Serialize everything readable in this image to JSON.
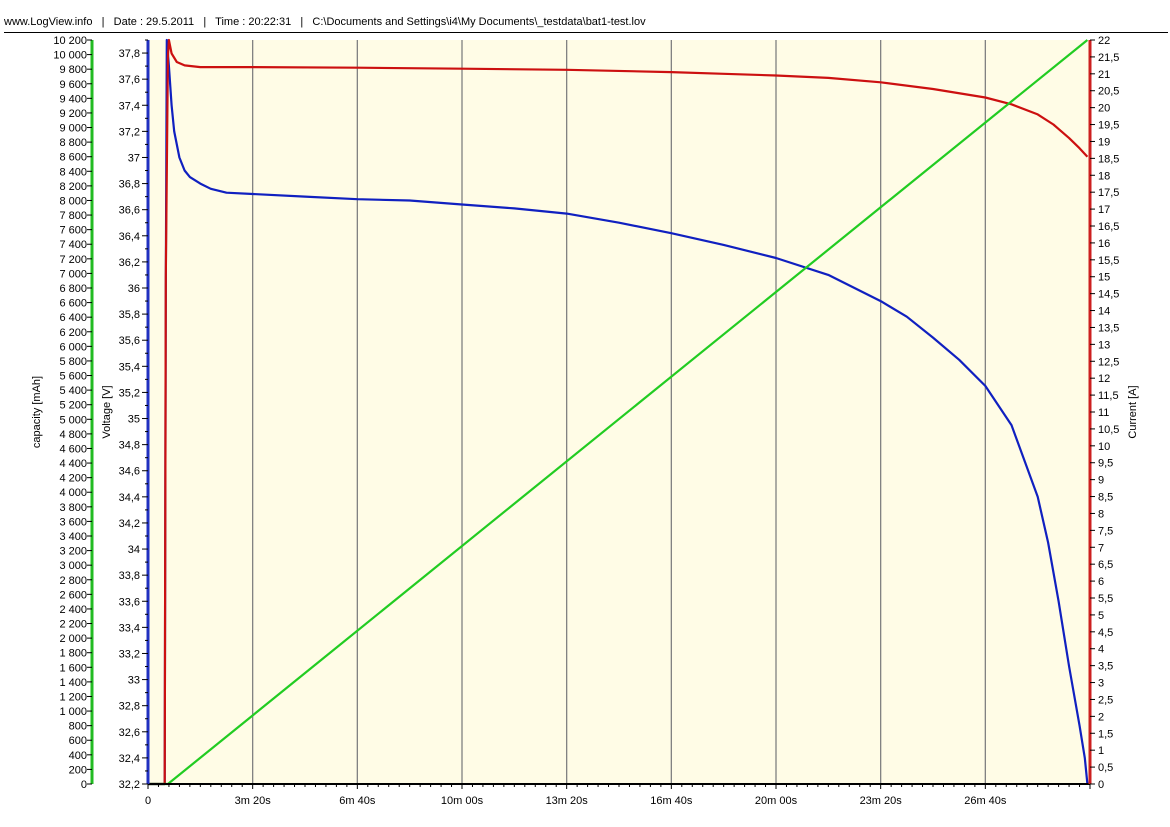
{
  "header": {
    "text": "www.LogView.info   |   Date : 29.5.2011   |   Time : 20:22:31   |   C:\\Documents and Settings\\i4\\My Documents\\_testdata\\bat1-test.lov"
  },
  "chart_data": {
    "type": "line",
    "background": "#fffce6",
    "grid_color": "#808080",
    "x_axis": {
      "unit": "s",
      "min": 0,
      "max": 1800,
      "ticks": [
        0,
        200,
        400,
        600,
        800,
        1000,
        1200,
        1400,
        1600
      ],
      "tick_labels": [
        "0",
        "3m 20s",
        "6m 40s",
        "10m 00s",
        "13m 20s",
        "16m 40s",
        "20m 00s",
        "23m 20s",
        "26m 40s"
      ],
      "grid": true
    },
    "y_axes": [
      {
        "id": "capacity",
        "label": "capacity [mAh]",
        "color": "#22bb22",
        "side": "left-outer",
        "min": 0,
        "max": 10200,
        "step": 200,
        "tick_labels": [
          "0",
          "200",
          "400",
          "600",
          "800",
          "1 000",
          "1 200",
          "1 400",
          "1 600",
          "1 800",
          "2 000",
          "2 200",
          "2 400",
          "2 600",
          "2 800",
          "3 000",
          "3 200",
          "3 400",
          "3 600",
          "3 800",
          "4 000",
          "4 200",
          "4 400",
          "4 600",
          "4 800",
          "5 000",
          "5 200",
          "5 400",
          "5 600",
          "5 800",
          "6 000",
          "6 200",
          "6 400",
          "6 600",
          "6 800",
          "7 000",
          "7 200",
          "7 400",
          "7 600",
          "7 800",
          "8 000",
          "8 200",
          "8 400",
          "8 600",
          "8 800",
          "9 000",
          "9 200",
          "9 400",
          "9 600",
          "9 800",
          "10 000",
          "10 200"
        ]
      },
      {
        "id": "voltage",
        "label": "Voltage [V]",
        "color": "#2030c0",
        "side": "left-inner",
        "min": 32.2,
        "max": 37.9,
        "step": 0.2,
        "tick_labels": [
          "32,2",
          "32,4",
          "32,6",
          "32,8",
          "33",
          "33,2",
          "33,4",
          "33,6",
          "33,8",
          "34",
          "34,2",
          "34,4",
          "34,6",
          "34,8",
          "35",
          "35,2",
          "35,4",
          "35,6",
          "35,8",
          "36",
          "36,2",
          "36,4",
          "36,6",
          "36,8",
          "37",
          "37,2",
          "37,4",
          "37,6",
          "37,8"
        ]
      },
      {
        "id": "current",
        "label": "Current [A]",
        "color": "#cc2020",
        "side": "right",
        "min": 0,
        "max": 22,
        "step": 0.5,
        "tick_labels": [
          "0",
          "0,5",
          "1",
          "1,5",
          "2",
          "2,5",
          "3",
          "3,5",
          "4",
          "4,5",
          "5",
          "5,5",
          "6",
          "6,5",
          "7",
          "7,5",
          "8",
          "8,5",
          "9",
          "9,5",
          "10",
          "10,5",
          "11",
          "11,5",
          "12",
          "12,5",
          "13",
          "13,5",
          "14",
          "14,5",
          "15",
          "15,5",
          "16",
          "16,5",
          "17",
          "17,5",
          "18",
          "18,5",
          "19",
          "19,5",
          "20",
          "20,5",
          "21",
          "21,5",
          "22"
        ]
      }
    ],
    "series": [
      {
        "name": "Voltage",
        "axis": "voltage",
        "color": "#1020c0",
        "x": [
          0,
          32,
          34,
          36,
          40,
          45,
          50,
          60,
          70,
          80,
          100,
          120,
          150,
          200,
          300,
          400,
          500,
          600,
          700,
          800,
          900,
          1000,
          1100,
          1200,
          1300,
          1400,
          1450,
          1500,
          1550,
          1600,
          1650,
          1700,
          1720,
          1740,
          1760,
          1780,
          1790,
          1795
        ],
        "y": [
          32.2,
          32.2,
          36.0,
          37.9,
          37.7,
          37.4,
          37.2,
          37.0,
          36.9,
          36.85,
          36.8,
          36.76,
          36.73,
          36.72,
          36.7,
          36.68,
          36.67,
          36.64,
          36.61,
          36.57,
          36.5,
          36.42,
          36.33,
          36.23,
          36.1,
          35.9,
          35.78,
          35.62,
          35.45,
          35.25,
          34.95,
          34.4,
          34.05,
          33.6,
          33.1,
          32.65,
          32.4,
          32.2
        ]
      },
      {
        "name": "Current",
        "axis": "current",
        "color": "#cc1010",
        "x": [
          0,
          32,
          34,
          38,
          40,
          45,
          55,
          70,
          100,
          200,
          400,
          600,
          800,
          1000,
          1100,
          1200,
          1300,
          1400,
          1500,
          1600,
          1650,
          1700,
          1730,
          1760,
          1780,
          1795
        ],
        "y": [
          0,
          0,
          15,
          21.5,
          22.0,
          21.6,
          21.35,
          21.25,
          21.2,
          21.2,
          21.18,
          21.15,
          21.12,
          21.05,
          21.0,
          20.95,
          20.88,
          20.75,
          20.55,
          20.3,
          20.1,
          19.8,
          19.5,
          19.1,
          18.8,
          18.55
        ]
      },
      {
        "name": "capacity",
        "axis": "capacity",
        "color": "#22cc22",
        "x": [
          0,
          38,
          1795
        ],
        "y": [
          0,
          0,
          10200
        ]
      }
    ]
  }
}
